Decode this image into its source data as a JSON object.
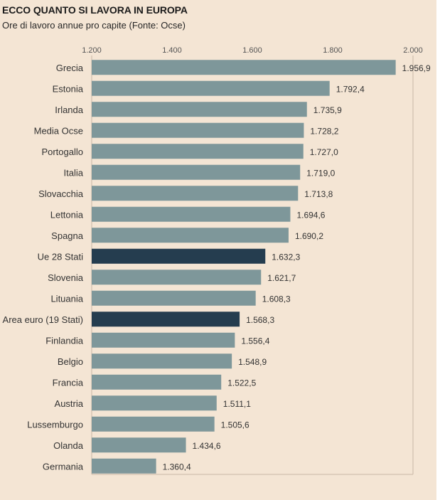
{
  "header": {
    "title": "ECCO QUANTO SI LAVORA IN EUROPA",
    "subtitle": "Ore di lavoro annue pro capite (Fonte: Ocse)"
  },
  "colors": {
    "background": "#f4e5d4",
    "bar_default": "#7e979a",
    "bar_highlight": "#253d4f",
    "axis": "#c9b8a6"
  },
  "chart_data": {
    "type": "bar",
    "orientation": "horizontal",
    "title": "ECCO QUANTO SI LAVORA IN EUROPA",
    "subtitle": "Ore di lavoro annue pro capite (Fonte: Ocse)",
    "xlim": [
      1200,
      2000
    ],
    "ticks": [
      1200,
      1400,
      1600,
      1800,
      2000
    ],
    "tick_labels": [
      "1.200",
      "1.400",
      "1.600",
      "1.800",
      "2.000"
    ],
    "grid": false,
    "categories": [
      "Grecia",
      "Estonia",
      "Irlanda",
      "Media Ocse",
      "Portogallo",
      "Italia",
      "Slovacchia",
      "Lettonia",
      "Spagna",
      "Ue 28 Stati",
      "Slovenia",
      "Lituania",
      "Area euro (19 Stati)",
      "Finlandia",
      "Belgio",
      "Francia",
      "Austria",
      "Lussemburgo",
      "Olanda",
      "Germania"
    ],
    "values": [
      1956.9,
      1792.4,
      1735.9,
      1728.2,
      1727.0,
      1719.0,
      1713.8,
      1694.6,
      1690.2,
      1632.3,
      1621.7,
      1608.3,
      1568.3,
      1556.4,
      1548.9,
      1522.5,
      1511.1,
      1505.6,
      1434.6,
      1360.4
    ],
    "value_labels": [
      "1.956,9",
      "1.792,4",
      "1.735,9",
      "1.728,2",
      "1.727,0",
      "1.719,0",
      "1.713,8",
      "1.694,6",
      "1.690,2",
      "1.632,3",
      "1.621,7",
      "1.608,3",
      "1.568,3",
      "1.556,4",
      "1.548,9",
      "1.522,5",
      "1.511,1",
      "1.505,6",
      "1.434,6",
      "1.360,4"
    ],
    "highlighted": [
      "Ue 28 Stati",
      "Area euro (19 Stati)"
    ]
  }
}
